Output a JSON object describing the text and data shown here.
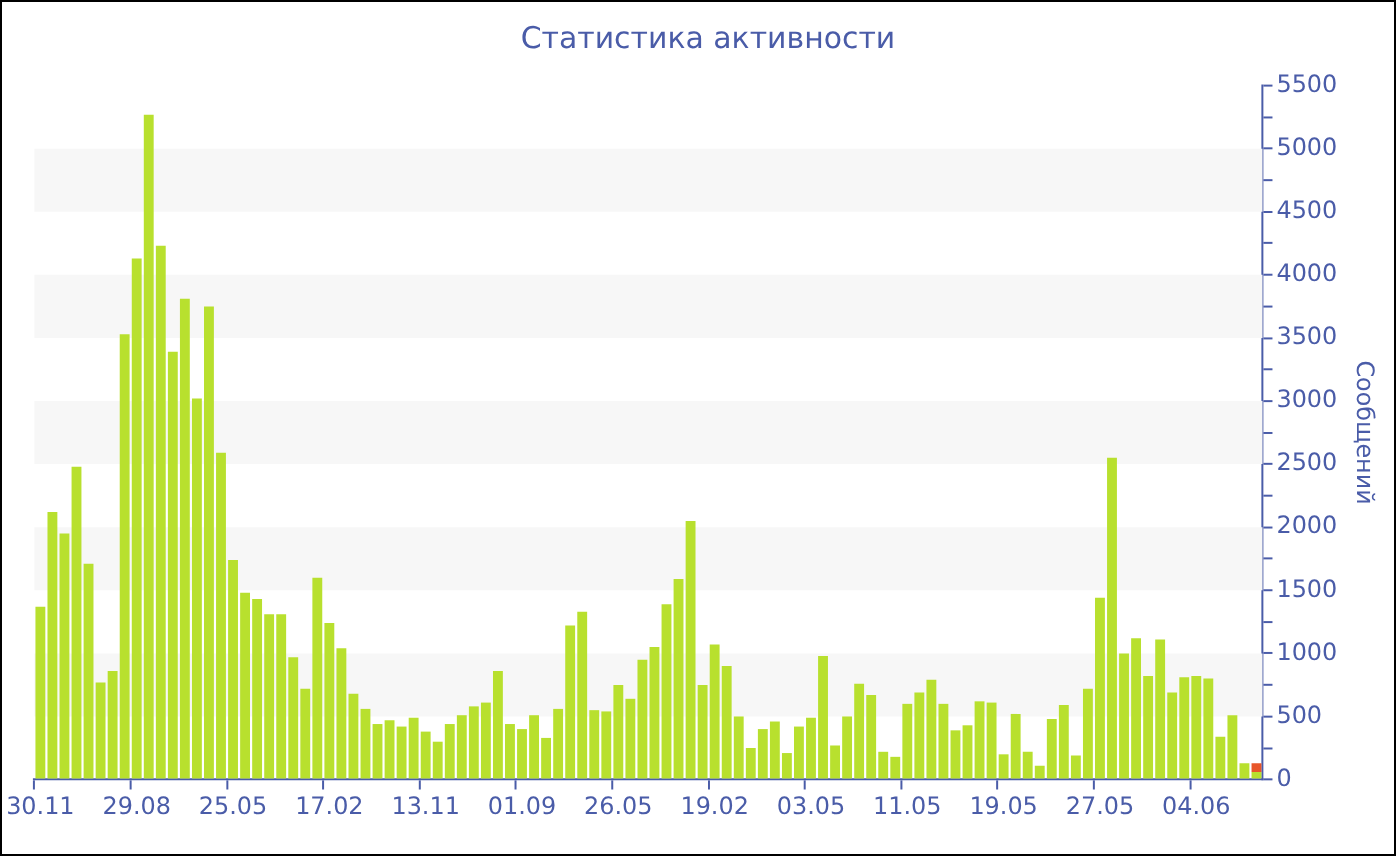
{
  "chart_data": {
    "type": "bar",
    "title": "Статистика активности",
    "ylabel": "Сообщений",
    "categories": [
      "30.11",
      null,
      null,
      null,
      null,
      null,
      null,
      null,
      "29.08",
      null,
      null,
      null,
      null,
      null,
      null,
      null,
      "25.05",
      null,
      null,
      null,
      null,
      null,
      null,
      null,
      "17.02",
      null,
      null,
      null,
      null,
      null,
      null,
      null,
      "13.11",
      null,
      null,
      null,
      null,
      null,
      null,
      null,
      "01.09",
      null,
      null,
      null,
      null,
      null,
      null,
      null,
      "26.05",
      null,
      null,
      null,
      null,
      null,
      null,
      null,
      "19.02",
      null,
      null,
      null,
      null,
      null,
      null,
      null,
      "03.05",
      null,
      null,
      null,
      null,
      null,
      null,
      null,
      "11.05",
      null,
      null,
      null,
      null,
      null,
      null,
      null,
      "19.05",
      null,
      null,
      null,
      null,
      null,
      null,
      null,
      "27.05",
      null,
      null,
      null,
      null,
      null,
      null,
      null,
      "04.06",
      null,
      null,
      null,
      null,
      null
    ],
    "series": [
      {
        "color": "#b8e02e",
        "values": [
          1370,
          2120,
          1950,
          2480,
          1710,
          770,
          860,
          3530,
          4130,
          5270,
          4230,
          3390,
          3810,
          3020,
          3750,
          2590,
          1740,
          1480,
          1430,
          1310,
          1310,
          970,
          720,
          1600,
          1240,
          1040,
          680,
          560,
          440,
          470,
          420,
          490,
          380,
          300,
          440,
          510,
          580,
          610,
          860,
          440,
          400,
          510,
          330,
          560,
          1220,
          1330,
          550,
          540,
          750,
          640,
          950,
          1050,
          1390,
          1590,
          2050,
          750,
          1070,
          900,
          500,
          250,
          400,
          460,
          210,
          420,
          490,
          980,
          270,
          500,
          760,
          670,
          220,
          180,
          600,
          690,
          790,
          600,
          390,
          430,
          620,
          610,
          200,
          520,
          220,
          110,
          480,
          590,
          190,
          720,
          1440,
          2550,
          1000,
          1120,
          820,
          1110,
          690,
          810,
          820,
          800,
          340,
          510,
          130,
          60
        ]
      },
      {
        "color": "#e8562a",
        "values": [
          null,
          null,
          null,
          null,
          null,
          null,
          null,
          null,
          null,
          null,
          null,
          null,
          null,
          null,
          null,
          null,
          null,
          null,
          null,
          null,
          null,
          null,
          null,
          null,
          null,
          null,
          null,
          null,
          null,
          null,
          null,
          null,
          null,
          null,
          null,
          null,
          null,
          null,
          null,
          null,
          null,
          null,
          null,
          null,
          null,
          null,
          null,
          null,
          null,
          null,
          null,
          null,
          null,
          null,
          null,
          null,
          null,
          null,
          null,
          null,
          null,
          null,
          null,
          null,
          null,
          null,
          null,
          null,
          null,
          null,
          null,
          null,
          null,
          null,
          null,
          null,
          null,
          null,
          null,
          null,
          null,
          null,
          null,
          null,
          null,
          null,
          null,
          null,
          null,
          null,
          null,
          null,
          null,
          null,
          null,
          null,
          null,
          null,
          null,
          null,
          null,
          70
        ]
      }
    ],
    "stacked": true,
    "ylim": [
      0,
      5500
    ],
    "yticks": [
      0,
      {
        "value": 250,
        "label": null
      },
      500,
      {
        "value": 750,
        "label": null
      },
      1000,
      {
        "value": 1250,
        "label": null
      },
      1500,
      {
        "value": 1750,
        "label": null
      },
      2000,
      {
        "value": 2250,
        "label": null
      },
      2500,
      {
        "value": 2750,
        "label": null
      },
      3000,
      {
        "value": 3250,
        "label": null
      },
      3500,
      {
        "value": 3750,
        "label": null
      },
      4000,
      {
        "value": 4250,
        "label": null
      },
      4500,
      {
        "value": 4750,
        "label": null
      },
      5000,
      {
        "value": 5250,
        "label": null
      },
      5500
    ],
    "bands": [
      {
        "axis": "y",
        "from": 500,
        "to": 1000,
        "color": "#f7f7f7"
      },
      {
        "axis": "y",
        "from": 1500,
        "to": 2000,
        "color": "#f7f7f7"
      },
      {
        "axis": "y",
        "from": 2500,
        "to": 3000,
        "color": "#f7f7f7"
      },
      {
        "axis": "y",
        "from": 3500,
        "to": 4000,
        "color": "#f7f7f7"
      },
      {
        "axis": "y",
        "from": 4500,
        "to": 5000,
        "color": "#f7f7f7"
      }
    ],
    "legend": false
  }
}
